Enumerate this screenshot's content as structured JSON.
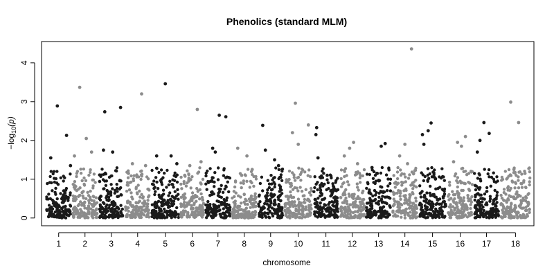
{
  "chart_data": {
    "type": "scatter",
    "title": "Phenolics (standard MLM)",
    "xlabel": "chromosome",
    "ylabel": "−log",
    "ylabel_sub": "10",
    "ylabel_var": "(p)",
    "ylim": [
      -0.2,
      4.55
    ],
    "y_ticks": [
      "0",
      "1",
      "2",
      "3",
      "4"
    ],
    "y_tick_values": [
      0,
      1,
      2,
      3,
      4
    ],
    "grid": false,
    "legend": "none",
    "colors": {
      "odd": "#1a1a1a",
      "even": "#8c8c8c"
    },
    "chromosomes": [
      {
        "label": "1",
        "start": 0,
        "len": 1.0,
        "top": [
          [
            0.45,
            2.89
          ],
          [
            0.8,
            2.13
          ],
          [
            0.2,
            1.55
          ],
          [
            0.95,
            1.35
          ]
        ]
      },
      {
        "label": "2",
        "start": 1.0,
        "len": 1.0,
        "top": [
          [
            0.3,
            3.37
          ],
          [
            0.55,
            2.05
          ],
          [
            0.75,
            1.7
          ],
          [
            0.1,
            1.6
          ]
        ]
      },
      {
        "label": "3",
        "start": 2.0,
        "len": 1.0,
        "top": [
          [
            0.25,
            2.74
          ],
          [
            0.85,
            2.85
          ],
          [
            0.55,
            1.7
          ],
          [
            0.2,
            1.75
          ]
        ]
      },
      {
        "label": "4",
        "start": 3.0,
        "len": 1.0,
        "top": [
          [
            0.65,
            3.2
          ],
          [
            0.3,
            1.4
          ],
          [
            0.8,
            1.35
          ],
          [
            0.15,
            1.15
          ]
        ]
      },
      {
        "label": "5",
        "start": 4.0,
        "len": 1.1,
        "top": [
          [
            0.5,
            3.46
          ],
          [
            0.2,
            1.6
          ],
          [
            0.7,
            1.6
          ],
          [
            0.9,
            1.4
          ]
        ]
      },
      {
        "label": "6",
        "start": 5.1,
        "len": 0.95,
        "top": [
          [
            0.7,
            2.8
          ],
          [
            0.4,
            1.35
          ],
          [
            0.85,
            1.45
          ],
          [
            0.2,
            1.1
          ]
        ]
      },
      {
        "label": "7",
        "start": 6.05,
        "len": 1.0,
        "top": [
          [
            0.55,
            2.65
          ],
          [
            0.8,
            2.61
          ],
          [
            0.3,
            1.8
          ],
          [
            0.4,
            1.7
          ]
        ]
      },
      {
        "label": "8",
        "start": 7.05,
        "len": 1.0,
        "top": [
          [
            0.25,
            1.8
          ],
          [
            0.6,
            1.6
          ],
          [
            0.8,
            1.25
          ],
          [
            0.4,
            1.1
          ]
        ]
      },
      {
        "label": "9",
        "start": 8.05,
        "len": 1.0,
        "top": [
          [
            0.2,
            2.39
          ],
          [
            0.3,
            1.75
          ],
          [
            0.65,
            1.5
          ],
          [
            0.8,
            1.35
          ]
        ]
      },
      {
        "label": "10",
        "start": 9.05,
        "len": 1.1,
        "top": [
          [
            0.4,
            2.96
          ],
          [
            0.85,
            2.4
          ],
          [
            0.3,
            2.2
          ],
          [
            0.5,
            1.9
          ]
        ]
      },
      {
        "label": "11",
        "start": 10.15,
        "len": 1.0,
        "top": [
          [
            0.15,
            2.33
          ],
          [
            0.12,
            2.15
          ],
          [
            0.2,
            1.55
          ],
          [
            0.55,
            1.1
          ]
        ]
      },
      {
        "label": "12",
        "start": 11.15,
        "len": 1.0,
        "top": [
          [
            0.55,
            1.95
          ],
          [
            0.4,
            1.8
          ],
          [
            0.2,
            1.6
          ],
          [
            0.7,
            1.4
          ]
        ]
      },
      {
        "label": "13",
        "start": 12.15,
        "len": 1.0,
        "top": [
          [
            0.6,
            1.85
          ],
          [
            0.75,
            1.92
          ],
          [
            0.25,
            1.3
          ],
          [
            0.45,
            1.15
          ]
        ]
      },
      {
        "label": "14",
        "start": 13.15,
        "len": 1.0,
        "top": [
          [
            0.75,
            4.36
          ],
          [
            0.5,
            1.9
          ],
          [
            0.3,
            1.6
          ],
          [
            0.6,
            1.4
          ]
        ]
      },
      {
        "label": "15",
        "start": 14.15,
        "len": 1.1,
        "top": [
          [
            0.35,
            2.25
          ],
          [
            0.45,
            2.45
          ],
          [
            0.15,
            2.15
          ],
          [
            0.2,
            1.9
          ]
        ]
      },
      {
        "label": "16",
        "start": 15.25,
        "len": 1.0,
        "top": [
          [
            0.4,
            1.95
          ],
          [
            0.55,
            1.85
          ],
          [
            0.7,
            2.1
          ],
          [
            0.25,
            1.45
          ]
        ]
      },
      {
        "label": "17",
        "start": 16.25,
        "len": 1.0,
        "top": [
          [
            0.4,
            2.46
          ],
          [
            0.6,
            2.18
          ],
          [
            0.25,
            2.0
          ],
          [
            0.15,
            1.7
          ]
        ]
      },
      {
        "label": "18",
        "start": 17.25,
        "len": 1.2,
        "top": [
          [
            0.35,
            2.99
          ],
          [
            0.6,
            2.46
          ],
          [
            0.45,
            1.25
          ],
          [
            0.8,
            1.15
          ]
        ]
      }
    ],
    "xlim": [
      -0.15,
      18.55
    ]
  }
}
